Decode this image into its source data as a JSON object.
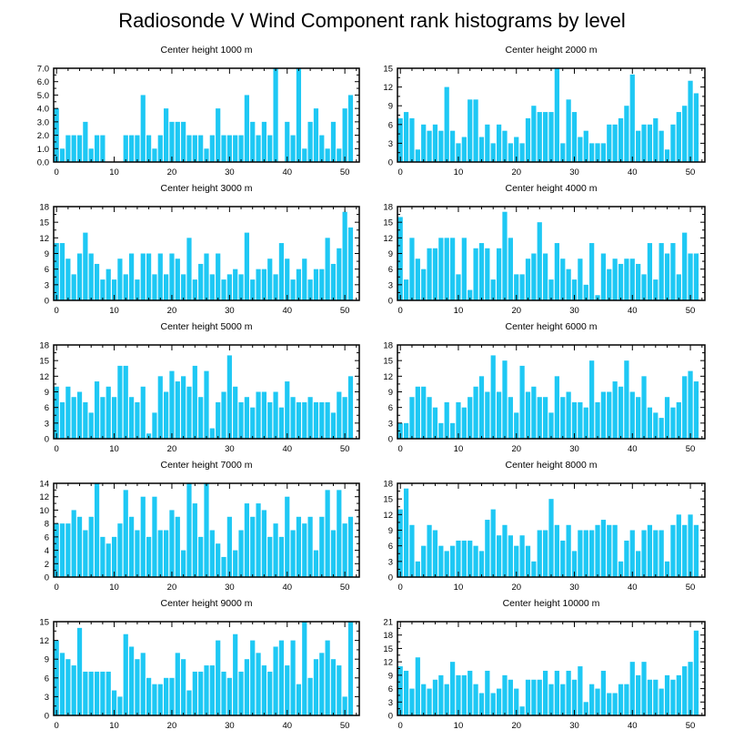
{
  "title": "Radiosonde V Wind Component rank histograms by level",
  "colors": {
    "bar": "#1ec8f4"
  },
  "chart_data": [
    {
      "type": "bar",
      "title": "Center height 1000 m",
      "x": [
        0,
        1,
        2,
        3,
        4,
        5,
        6,
        7,
        8,
        9,
        10,
        11,
        12,
        13,
        14,
        15,
        16,
        17,
        18,
        19,
        20,
        21,
        22,
        23,
        24,
        25,
        26,
        27,
        28,
        29,
        30,
        31,
        32,
        33,
        34,
        35,
        36,
        37,
        38,
        39,
        40,
        41,
        42,
        43,
        44,
        45,
        46,
        47,
        48,
        49,
        50,
        51
      ],
      "values": [
        4,
        1,
        2,
        2,
        2,
        3,
        1,
        2,
        2,
        0,
        0,
        0,
        2,
        2,
        2,
        5,
        2,
        1,
        2,
        4,
        3,
        3,
        3,
        2,
        2,
        2,
        1,
        2,
        4,
        2,
        2,
        2,
        2,
        5,
        3,
        2,
        3,
        2,
        7,
        0,
        3,
        2,
        7,
        1,
        3,
        4,
        2,
        1,
        3,
        1,
        4,
        5
      ],
      "ylim": [
        0,
        7
      ],
      "yticks": [
        "0.0",
        "1.0",
        "2.0",
        "3.0",
        "4.0",
        "5.0",
        "6.0",
        "7.0"
      ],
      "xticks": [
        "0",
        "10",
        "20",
        "30",
        "40",
        "50"
      ]
    },
    {
      "type": "bar",
      "title": "Center height 2000 m",
      "x": [
        0,
        1,
        2,
        3,
        4,
        5,
        6,
        7,
        8,
        9,
        10,
        11,
        12,
        13,
        14,
        15,
        16,
        17,
        18,
        19,
        20,
        21,
        22,
        23,
        24,
        25,
        26,
        27,
        28,
        29,
        30,
        31,
        32,
        33,
        34,
        35,
        36,
        37,
        38,
        39,
        40,
        41,
        42,
        43,
        44,
        45,
        46,
        47,
        48,
        49,
        50,
        51
      ],
      "values": [
        7,
        8,
        7,
        2,
        6,
        5,
        6,
        5,
        12,
        5,
        3,
        4,
        10,
        10,
        4,
        6,
        3,
        6,
        5,
        3,
        4,
        3,
        7,
        9,
        8,
        8,
        8,
        15,
        3,
        10,
        8,
        4,
        5,
        3,
        3,
        3,
        6,
        6,
        7,
        9,
        14,
        5,
        6,
        6,
        7,
        5,
        2,
        6,
        8,
        9,
        13,
        11
      ],
      "ylim": [
        0,
        15
      ],
      "yticks": [
        "0",
        "3",
        "6",
        "9",
        "12",
        "15"
      ],
      "xticks": [
        "0",
        "10",
        "20",
        "30",
        "40",
        "50"
      ]
    },
    {
      "type": "bar",
      "title": "Center height 3000 m",
      "x": [
        0,
        1,
        2,
        3,
        4,
        5,
        6,
        7,
        8,
        9,
        10,
        11,
        12,
        13,
        14,
        15,
        16,
        17,
        18,
        19,
        20,
        21,
        22,
        23,
        24,
        25,
        26,
        27,
        28,
        29,
        30,
        31,
        32,
        33,
        34,
        35,
        36,
        37,
        38,
        39,
        40,
        41,
        42,
        43,
        44,
        45,
        46,
        47,
        48,
        49,
        50,
        51
      ],
      "values": [
        11,
        11,
        8,
        5,
        9,
        13,
        9,
        7,
        4,
        6,
        4,
        8,
        5,
        9,
        4,
        9,
        9,
        5,
        9,
        5,
        9,
        8,
        5,
        12,
        4,
        7,
        9,
        5,
        9,
        4,
        5,
        6,
        5,
        13,
        4,
        6,
        6,
        8,
        5,
        11,
        8,
        4,
        6,
        8,
        4,
        6,
        6,
        12,
        7,
        10,
        17,
        14
      ],
      "ylim": [
        0,
        18
      ],
      "yticks": [
        "0",
        "3",
        "6",
        "9",
        "12",
        "15",
        "18"
      ],
      "xticks": [
        "0",
        "10",
        "20",
        "30",
        "40",
        "50"
      ]
    },
    {
      "type": "bar",
      "title": "Center height 4000 m",
      "x": [
        0,
        1,
        2,
        3,
        4,
        5,
        6,
        7,
        8,
        9,
        10,
        11,
        12,
        13,
        14,
        15,
        16,
        17,
        18,
        19,
        20,
        21,
        22,
        23,
        24,
        25,
        26,
        27,
        28,
        29,
        30,
        31,
        32,
        33,
        34,
        35,
        36,
        37,
        38,
        39,
        40,
        41,
        42,
        43,
        44,
        45,
        46,
        47,
        48,
        49,
        50,
        51
      ],
      "values": [
        16,
        4,
        12,
        8,
        6,
        10,
        10,
        12,
        12,
        12,
        5,
        12,
        2,
        10,
        11,
        10,
        4,
        10,
        17,
        12,
        5,
        5,
        8,
        9,
        15,
        9,
        4,
        11,
        8,
        6,
        4,
        8,
        3,
        11,
        1,
        9,
        6,
        8,
        7,
        8,
        8,
        7,
        5,
        11,
        4,
        11,
        9,
        11,
        5,
        13,
        9,
        9
      ],
      "ylim": [
        0,
        18
      ],
      "yticks": [
        "0",
        "3",
        "6",
        "9",
        "12",
        "15",
        "18"
      ],
      "xticks": [
        "0",
        "10",
        "20",
        "30",
        "40",
        "50"
      ]
    },
    {
      "type": "bar",
      "title": "Center height 5000 m",
      "x": [
        0,
        1,
        2,
        3,
        4,
        5,
        6,
        7,
        8,
        9,
        10,
        11,
        12,
        13,
        14,
        15,
        16,
        17,
        18,
        19,
        20,
        21,
        22,
        23,
        24,
        25,
        26,
        27,
        28,
        29,
        30,
        31,
        32,
        33,
        34,
        35,
        36,
        37,
        38,
        39,
        40,
        41,
        42,
        43,
        44,
        45,
        46,
        47,
        48,
        49,
        50,
        51
      ],
      "values": [
        10,
        7,
        10,
        8,
        9,
        7,
        5,
        11,
        8,
        10,
        8,
        14,
        14,
        8,
        7,
        10,
        1,
        5,
        12,
        9,
        13,
        11,
        12,
        10,
        14,
        8,
        13,
        2,
        7,
        9,
        16,
        10,
        7,
        8,
        6,
        9,
        9,
        7,
        9,
        6,
        11,
        8,
        7,
        7,
        8,
        7,
        7,
        7,
        5,
        9,
        8,
        12
      ],
      "ylim": [
        0,
        18
      ],
      "yticks": [
        "0",
        "3",
        "6",
        "9",
        "12",
        "15",
        "18"
      ],
      "xticks": [
        "0",
        "10",
        "20",
        "30",
        "40",
        "50"
      ]
    },
    {
      "type": "bar",
      "title": "Center height 6000 m",
      "x": [
        0,
        1,
        2,
        3,
        4,
        5,
        6,
        7,
        8,
        9,
        10,
        11,
        12,
        13,
        14,
        15,
        16,
        17,
        18,
        19,
        20,
        21,
        22,
        23,
        24,
        25,
        26,
        27,
        28,
        29,
        30,
        31,
        32,
        33,
        34,
        35,
        36,
        37,
        38,
        39,
        40,
        41,
        42,
        43,
        44,
        45,
        46,
        47,
        48,
        49,
        50,
        51
      ],
      "values": [
        3,
        3,
        8,
        10,
        10,
        8,
        6,
        3,
        7,
        3,
        7,
        6,
        8,
        10,
        12,
        9,
        16,
        9,
        15,
        8,
        5,
        14,
        9,
        10,
        8,
        8,
        5,
        12,
        8,
        9,
        7,
        7,
        6,
        15,
        7,
        9,
        9,
        11,
        10,
        15,
        9,
        8,
        12,
        6,
        5,
        4,
        8,
        6,
        7,
        12,
        13,
        11
      ],
      "ylim": [
        0,
        18
      ],
      "yticks": [
        "0",
        "3",
        "6",
        "9",
        "12",
        "15",
        "18"
      ],
      "xticks": [
        "0",
        "10",
        "20",
        "30",
        "40",
        "50"
      ]
    },
    {
      "type": "bar",
      "title": "Center height 7000 m",
      "x": [
        0,
        1,
        2,
        3,
        4,
        5,
        6,
        7,
        8,
        9,
        10,
        11,
        12,
        13,
        14,
        15,
        16,
        17,
        18,
        19,
        20,
        21,
        22,
        23,
        24,
        25,
        26,
        27,
        28,
        29,
        30,
        31,
        32,
        33,
        34,
        35,
        36,
        37,
        38,
        39,
        40,
        41,
        42,
        43,
        44,
        45,
        46,
        47,
        48,
        49,
        50,
        51
      ],
      "values": [
        8,
        8,
        8,
        10,
        9,
        7,
        9,
        14,
        6,
        5,
        6,
        8,
        13,
        9,
        7,
        12,
        6,
        12,
        7,
        7,
        10,
        9,
        4,
        14,
        11,
        6,
        14,
        7,
        5,
        3,
        9,
        4,
        7,
        11,
        9,
        11,
        10,
        6,
        8,
        6,
        12,
        7,
        9,
        8,
        9,
        4,
        9,
        13,
        7,
        13,
        8,
        9
      ],
      "ylim": [
        0,
        14
      ],
      "yticks": [
        "0",
        "2",
        "4",
        "6",
        "8",
        "10",
        "12",
        "14"
      ],
      "xticks": [
        "0",
        "10",
        "20",
        "30",
        "40",
        "50"
      ]
    },
    {
      "type": "bar",
      "title": "Center height 8000 m",
      "x": [
        0,
        1,
        2,
        3,
        4,
        5,
        6,
        7,
        8,
        9,
        10,
        11,
        12,
        13,
        14,
        15,
        16,
        17,
        18,
        19,
        20,
        21,
        22,
        23,
        24,
        25,
        26,
        27,
        28,
        29,
        30,
        31,
        32,
        33,
        34,
        35,
        36,
        37,
        38,
        39,
        40,
        41,
        42,
        43,
        44,
        45,
        46,
        47,
        48,
        49,
        50,
        51
      ],
      "values": [
        13,
        17,
        10,
        3,
        6,
        10,
        9,
        6,
        5,
        6,
        7,
        7,
        7,
        6,
        5,
        11,
        13,
        8,
        10,
        8,
        6,
        8,
        6,
        3,
        9,
        9,
        15,
        10,
        7,
        10,
        5,
        9,
        9,
        9,
        10,
        11,
        10,
        10,
        3,
        7,
        9,
        5,
        9,
        10,
        9,
        9,
        3,
        10,
        12,
        10,
        12,
        10
      ],
      "ylim": [
        0,
        18
      ],
      "yticks": [
        "0",
        "3",
        "6",
        "9",
        "12",
        "15",
        "18"
      ],
      "xticks": [
        "0",
        "10",
        "20",
        "30",
        "40",
        "50"
      ]
    },
    {
      "type": "bar",
      "title": "Center height 9000 m",
      "x": [
        0,
        1,
        2,
        3,
        4,
        5,
        6,
        7,
        8,
        9,
        10,
        11,
        12,
        13,
        14,
        15,
        16,
        17,
        18,
        19,
        20,
        21,
        22,
        23,
        24,
        25,
        26,
        27,
        28,
        29,
        30,
        31,
        32,
        33,
        34,
        35,
        36,
        37,
        38,
        39,
        40,
        41,
        42,
        43,
        44,
        45,
        46,
        47,
        48,
        49,
        50,
        51
      ],
      "values": [
        12,
        10,
        9,
        8,
        14,
        7,
        7,
        7,
        7,
        7,
        4,
        3,
        13,
        11,
        9,
        10,
        6,
        5,
        5,
        6,
        6,
        10,
        9,
        4,
        7,
        7,
        8,
        8,
        12,
        7,
        6,
        13,
        7,
        9,
        12,
        10,
        8,
        7,
        11,
        12,
        8,
        12,
        5,
        15,
        6,
        9,
        10,
        12,
        9,
        8,
        3,
        15
      ],
      "ylim": [
        0,
        15
      ],
      "yticks": [
        "0",
        "3",
        "6",
        "9",
        "12",
        "15"
      ],
      "xticks": [
        "0",
        "10",
        "20",
        "30",
        "40",
        "50"
      ]
    },
    {
      "type": "bar",
      "title": "Center height 10000 m",
      "x": [
        0,
        1,
        2,
        3,
        4,
        5,
        6,
        7,
        8,
        9,
        10,
        11,
        12,
        13,
        14,
        15,
        16,
        17,
        18,
        19,
        20,
        21,
        22,
        23,
        24,
        25,
        26,
        27,
        28,
        29,
        30,
        31,
        32,
        33,
        34,
        35,
        36,
        37,
        38,
        39,
        40,
        41,
        42,
        43,
        44,
        45,
        46,
        47,
        48,
        49,
        50,
        51
      ],
      "values": [
        11,
        10,
        6,
        13,
        7,
        6,
        8,
        9,
        7,
        12,
        9,
        9,
        10,
        7,
        5,
        10,
        5,
        6,
        9,
        8,
        6,
        2,
        8,
        8,
        8,
        10,
        7,
        10,
        7,
        10,
        8,
        11,
        3,
        7,
        6,
        10,
        5,
        5,
        7,
        7,
        12,
        9,
        12,
        8,
        8,
        6,
        9,
        8,
        9,
        11,
        12,
        19
      ],
      "ylim": [
        0,
        21
      ],
      "yticks": [
        "0",
        "3",
        "6",
        "9",
        "12",
        "15",
        "18",
        "21"
      ],
      "xticks": [
        "0",
        "10",
        "20",
        "30",
        "40",
        "50"
      ]
    }
  ]
}
